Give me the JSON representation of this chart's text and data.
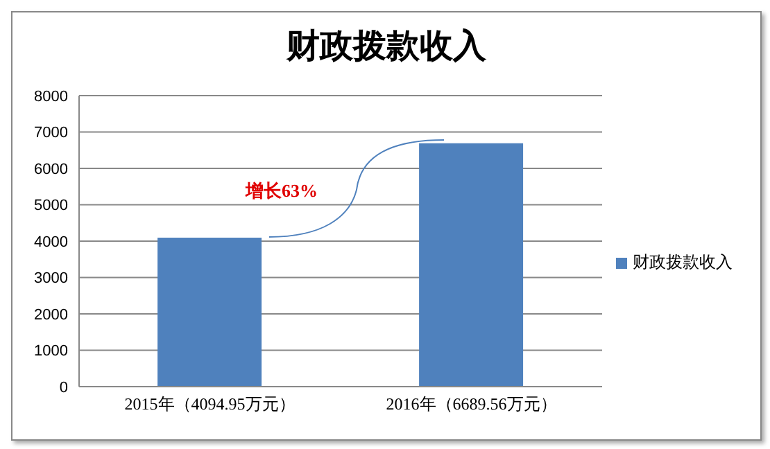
{
  "chart_data": {
    "type": "bar",
    "title": "财政拨款收入",
    "categories": [
      "2015年（4094.95万元）",
      "2016年（6689.56万元）"
    ],
    "series": [
      {
        "name": "财政拨款收入",
        "color": "#4f81bd",
        "values": [
          4094.95,
          6689.56
        ]
      }
    ],
    "ylim": [
      0,
      8000
    ],
    "yticks": [
      0,
      1000,
      2000,
      3000,
      4000,
      5000,
      6000,
      7000,
      8000
    ],
    "grid": "y",
    "legend": "right",
    "annotations": [
      "增长63%"
    ]
  }
}
